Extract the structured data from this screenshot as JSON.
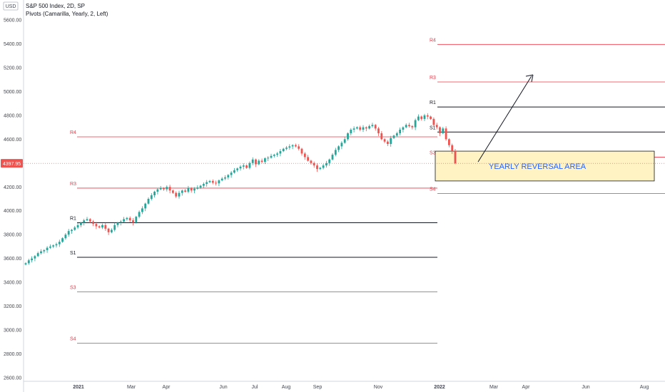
{
  "legend": {
    "currency": "USD",
    "symbol_line": "S&P 500 Index, 2D, SP",
    "indicator_line": "Pivots (Camarilla, Yearly, 2, Left)"
  },
  "colors": {
    "up": "#26a69a",
    "down": "#ef5350",
    "pivot_red": "#f23645",
    "pivot_black": "#131722",
    "last_price_bg": "#ef5350",
    "zone_fill": "#fff3c4",
    "zone_border": "#131722",
    "annotation_text": "#2962ff",
    "arrow": "#131722"
  },
  "chart_data": {
    "type": "candlestick",
    "title": "S&P 500 Index, 2D, SP",
    "ylim": [
      2600,
      5600
    ],
    "y_ticks": [
      "5600.00",
      "5400.00",
      "5200.00",
      "5000.00",
      "4800.00",
      "4600.00",
      "4400.00",
      "4200.00",
      "4000.00",
      "3800.00",
      "3600.00",
      "3400.00",
      "3200.00",
      "3000.00",
      "2800.00",
      "2600.00"
    ],
    "x_labels": [
      "2021",
      "Mar",
      "Apr",
      "Jun",
      "Jul",
      "Aug",
      "Sep",
      "Nov",
      "2022",
      "Mar",
      "Apr",
      "Jun",
      "Aug"
    ],
    "last_price": "4397.95",
    "pivots_2021": [
      {
        "label": "R4",
        "value": 4620,
        "color": "red"
      },
      {
        "label": "R3",
        "value": 4190,
        "color": "red"
      },
      {
        "label": "R1",
        "value": 3900,
        "color": "black"
      },
      {
        "label": "S1",
        "value": 3610,
        "color": "black"
      },
      {
        "label": "S3",
        "value": 3320,
        "color": "red"
      },
      {
        "label": "S4",
        "value": 2890,
        "color": "red"
      }
    ],
    "pivots_2022": [
      {
        "label": "R4",
        "value": 5395,
        "color": "red"
      },
      {
        "label": "R3",
        "value": 5080,
        "color": "red"
      },
      {
        "label": "R1",
        "value": 4870,
        "color": "black"
      },
      {
        "label": "S1",
        "value": 4660,
        "color": "black"
      },
      {
        "label": "S3",
        "value": 4450,
        "color": "red"
      },
      {
        "label": "S4",
        "value": 4145,
        "color": "red"
      }
    ],
    "closes": [
      3560,
      3585,
      3600,
      3620,
      3645,
      3660,
      3670,
      3690,
      3700,
      3710,
      3720,
      3740,
      3770,
      3800,
      3830,
      3840,
      3860,
      3880,
      3900,
      3920,
      3930,
      3910,
      3890,
      3870,
      3860,
      3880,
      3850,
      3820,
      3840,
      3880,
      3900,
      3910,
      3930,
      3940,
      3920,
      3900,
      3950,
      3990,
      4020,
      4060,
      4100,
      4130,
      4160,
      4180,
      4190,
      4180,
      4200,
      4170,
      4150,
      4120,
      4150,
      4170,
      4160,
      4190,
      4170,
      4185,
      4195,
      4210,
      4225,
      4240,
      4250,
      4235,
      4230,
      4255,
      4270,
      4280,
      4300,
      4320,
      4340,
      4355,
      4370,
      4380,
      4360,
      4400,
      4430,
      4390,
      4420,
      4410,
      4440,
      4445,
      4460,
      4470,
      4480,
      4500,
      4520,
      4530,
      4540,
      4550,
      4540,
      4520,
      4480,
      4450,
      4420,
      4400,
      4380,
      4350,
      4360,
      4380,
      4400,
      4430,
      4470,
      4510,
      4540,
      4570,
      4600,
      4650,
      4680,
      4690,
      4700,
      4680,
      4700,
      4690,
      4710,
      4720,
      4690,
      4650,
      4600,
      4580,
      4560,
      4610,
      4630,
      4650,
      4680,
      4700,
      4720,
      4710,
      4700,
      4760,
      4790,
      4770,
      4800,
      4790,
      4770,
      4720,
      4700,
      4650,
      4690,
      4600,
      4550,
      4500,
      4397.95
    ],
    "zone_annotation": "YEARLY REVERSAL AREA",
    "zone_range": [
      4250,
      4500
    ]
  }
}
